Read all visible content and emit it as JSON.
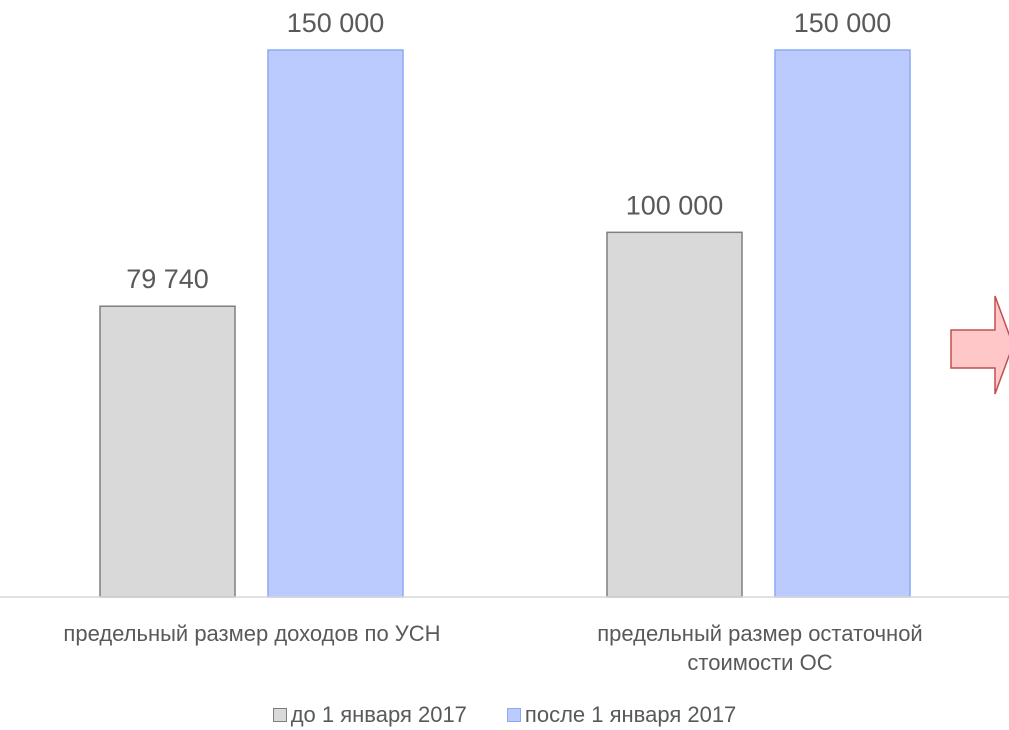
{
  "chart_data": {
    "type": "bar",
    "categories": [
      [
        "предельный размер доходов по УСН"
      ],
      [
        "предельный размер остаточной",
        "стоимости ОС"
      ]
    ],
    "series": [
      {
        "name": "до 1 января 2017",
        "values": [
          79740,
          100000
        ],
        "labels": [
          "79 740",
          "100 000"
        ],
        "fill": "#d9d9d9",
        "stroke": "#7f7f7f"
      },
      {
        "name": "после 1 января 2017",
        "values": [
          150000,
          150000
        ],
        "labels": [
          "150 000",
          "150 000"
        ],
        "fill": "#bccbfd",
        "stroke": "#8ea9f0"
      }
    ],
    "ylim": [
      0,
      150000
    ],
    "grid": false,
    "legend_position": "bottom"
  },
  "decoration": {
    "arrow_icon": "right-arrow-icon",
    "arrow_fill": "#ffc7c7",
    "arrow_stroke": "#c0504d",
    "axis_color": "#d9d9d9",
    "text_color": "#595959"
  }
}
